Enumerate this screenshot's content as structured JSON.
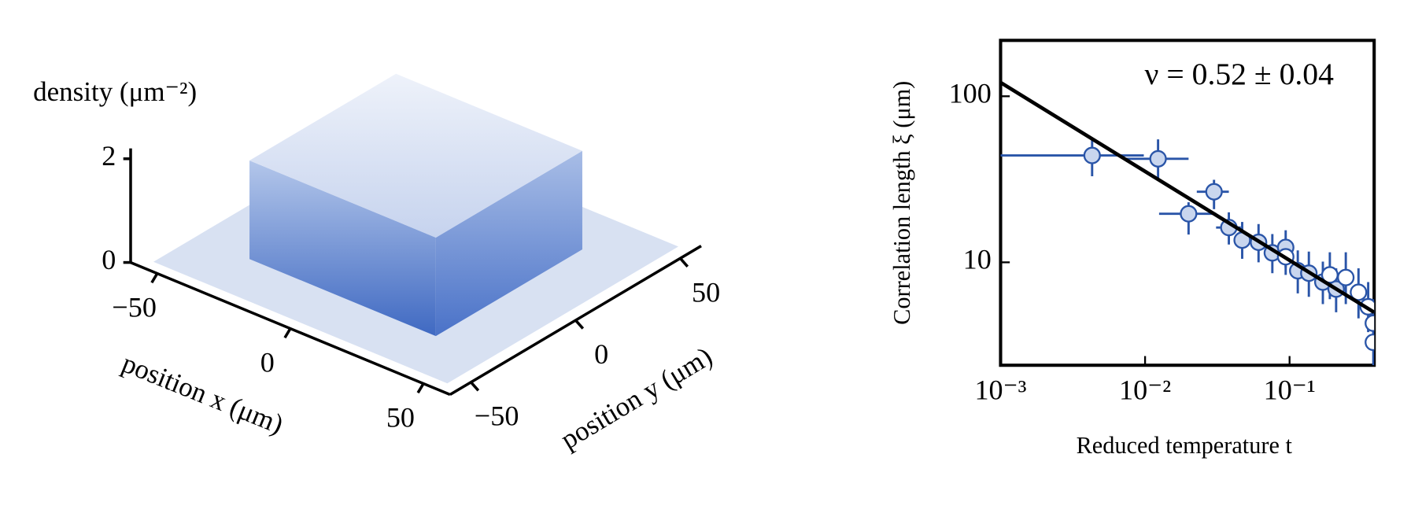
{
  "chart_data": [
    {
      "type": "surface3d",
      "zlabel": "density (μm⁻²)",
      "xlabel": "position x (μm)",
      "ylabel": "position y (μm)",
      "xlim": [
        -60,
        60
      ],
      "ylim": [
        -60,
        60
      ],
      "zlim": [
        0,
        2.2
      ],
      "xticks": [
        {
          "value": -50,
          "label": "−50"
        },
        0,
        50
      ],
      "yticks": [
        {
          "value": -50,
          "label": "−50"
        },
        0,
        50
      ],
      "zticks": [
        0,
        2
      ],
      "color": "#3a66c4"
    },
    {
      "type": "scatter",
      "log": true,
      "xlabel": "Reduced temperature t",
      "ylabel": "Correlation length ξ (μm)",
      "annotation": "ν = 0.52 ± 0.04",
      "xlim": [
        0.001,
        0.385
      ],
      "ylim": [
        2.4,
        217
      ],
      "xticks": [
        {
          "value": 0.001,
          "label": "10⁻³"
        },
        {
          "value": 0.01,
          "label": "10⁻²"
        },
        {
          "value": 0.1,
          "label": "10⁻¹"
        }
      ],
      "yticks": [
        10,
        100
      ],
      "series": [
        {
          "color": "#2a55a8",
          "face": "#c9d6ee",
          "x": [
            0.0043,
            0.0123,
            0.02,
            0.03,
            0.038,
            0.047,
            0.061,
            0.076,
            0.094,
            0.114,
            0.136,
            0.17,
            0.21
          ],
          "values": [
            44,
            42,
            19.6,
            26.6,
            16.2,
            13.6,
            13.2,
            11.4,
            12.3,
            8.9,
            8.6,
            7.6,
            6.9
          ],
          "x_low": [
            0.001,
            0.0072,
            0.0125,
            0.0228,
            0.031,
            null,
            null,
            null,
            null,
            null,
            null,
            null,
            null
          ],
          "x_high": [
            0.0098,
            0.02,
            0.031,
            0.038,
            0.046,
            null,
            null,
            null,
            null,
            null,
            null,
            null,
            null
          ],
          "y_low": [
            33,
            32,
            14.7,
            20.9,
            12.8,
            10.5,
            10,
            8.6,
            9.3,
            6.5,
            6.2,
            5.6,
            5.0
          ],
          "y_high": [
            56,
            55,
            23,
            31.4,
            20,
            17.5,
            17,
            14.8,
            15.6,
            11.8,
            11.6,
            10.1,
            9.2
          ]
        },
        {
          "color": "#2a55a8",
          "face": "#ffffff",
          "x": [
            0.094,
            0.19,
            0.245,
            0.3,
            0.35,
            0.38,
            0.38
          ],
          "values": [
            10.8,
            8.4,
            8.1,
            6.6,
            5.4,
            4.3,
            3.3
          ],
          "y_low": [
            8.4,
            6.0,
            5.6,
            4.6,
            3.8,
            3.0,
            2.4
          ],
          "y_high": [
            13.7,
            11.5,
            11.5,
            9.2,
            7.6,
            6.0,
            4.6
          ]
        }
      ],
      "fit": {
        "color": "#000000",
        "x": [
          0.001,
          0.385
        ],
        "values": [
          121,
          5.0
        ]
      }
    }
  ]
}
